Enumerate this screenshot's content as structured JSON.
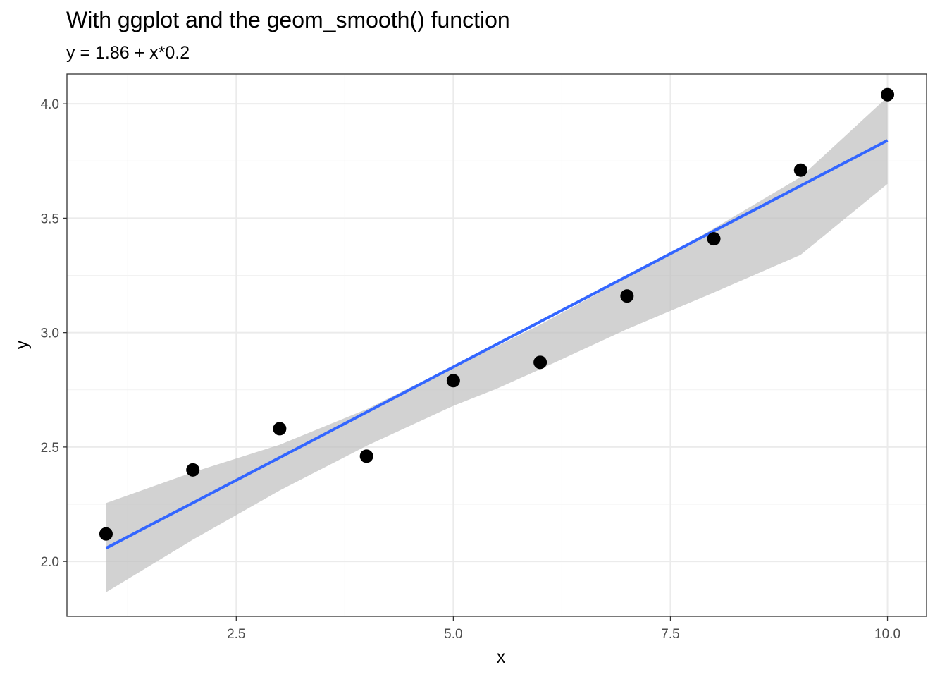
{
  "chart_data": {
    "type": "scatter",
    "title": "With ggplot and the geom_smooth() function",
    "subtitle": "y = 1.86 + x*0.2",
    "xlabel": "x",
    "ylabel": "y",
    "xlim": [
      0.55,
      10.45
    ],
    "ylim": [
      1.76,
      4.13
    ],
    "xticks": [
      2.5,
      5.0,
      7.5,
      10.0
    ],
    "xtick_labels": [
      "2.5",
      "5.0",
      "7.5",
      "10.0"
    ],
    "yticks": [
      2.0,
      2.5,
      3.0,
      3.5,
      4.0
    ],
    "ytick_labels": [
      "2.0",
      "2.5",
      "3.0",
      "3.5",
      "4.0"
    ],
    "x_minor_ticks": [
      1.25,
      3.75,
      6.25,
      8.75
    ],
    "y_minor_ticks": [
      2.25,
      2.75,
      3.25,
      3.75
    ],
    "grid": true,
    "points": {
      "x": [
        1,
        2,
        3,
        4,
        5,
        6,
        7,
        8,
        9,
        10
      ],
      "y": [
        2.12,
        2.4,
        2.58,
        2.46,
        2.79,
        2.87,
        3.16,
        3.41,
        3.71,
        4.04
      ]
    },
    "fit": {
      "method": "lm",
      "intercept": 1.86,
      "slope": 0.198,
      "ci_x": [
        1,
        2,
        3,
        4,
        5,
        5.5,
        6,
        7,
        8,
        9,
        10
      ],
      "ci_lower": [
        1.865,
        2.095,
        2.31,
        2.505,
        2.68,
        2.755,
        2.84,
        3.015,
        3.175,
        3.34,
        3.65
      ],
      "ci_upper": [
        2.255,
        2.39,
        2.51,
        2.665,
        2.855,
        2.94,
        3.035,
        3.24,
        3.455,
        3.68,
        4.03
      ]
    },
    "colors": {
      "line": "#3366ff",
      "ribbon": "#bfbfbf",
      "point": "#000000",
      "grid_major": "#ebebeb",
      "grid_minor": "#f2f2f2",
      "panel_border": "#333333"
    }
  }
}
